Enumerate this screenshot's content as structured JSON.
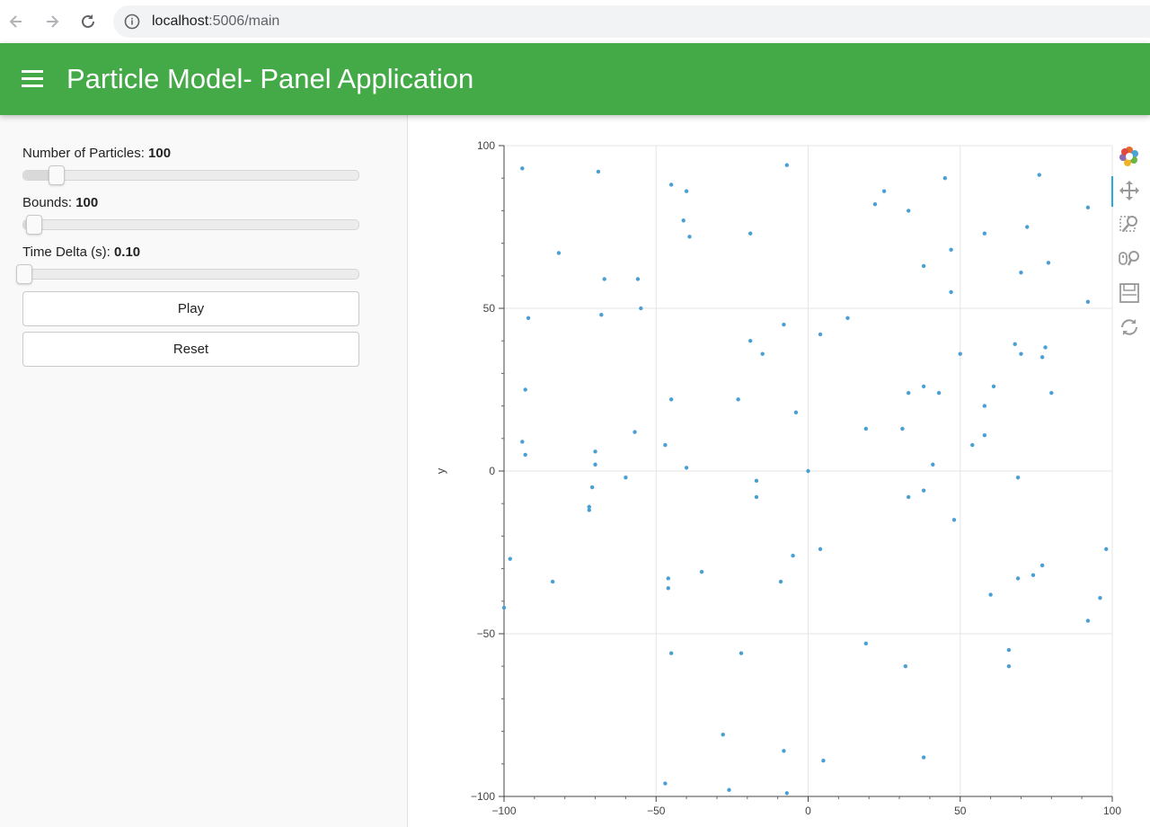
{
  "browser": {
    "url_host": "localhost",
    "url_path": ":5006/main"
  },
  "header": {
    "title": "Particle Model- Panel Application",
    "background": "#44aa48"
  },
  "sidebar": {
    "particles": {
      "label": "Number of Particles: ",
      "value": "100",
      "min": 0,
      "max": 1000,
      "current": 100
    },
    "bounds": {
      "label": "Bounds: ",
      "value": "100",
      "min": 100,
      "max": 1000,
      "current": 100
    },
    "time_delta": {
      "label": "Time Delta (s): ",
      "value": "0.10",
      "min": 0.1,
      "max": 10,
      "current": 0.1
    },
    "play_label": "Play",
    "reset_label": "Reset"
  },
  "toolbar": {
    "tools": [
      "bokeh-logo-icon",
      "pan-icon",
      "box-zoom-icon",
      "wheel-zoom-icon",
      "save-icon",
      "reset-icon"
    ]
  },
  "chart_data": {
    "type": "scatter",
    "xlabel": "",
    "ylabel": "y",
    "xlim": [
      -100,
      100
    ],
    "ylim": [
      -100,
      100
    ],
    "xticks": [
      "−100",
      "−50",
      "0",
      "50",
      "100"
    ],
    "yticks": [
      "−100",
      "−50",
      "0",
      "50",
      "100"
    ],
    "grid": true,
    "color": "#4a9fd5",
    "points": [
      [
        -94,
        93
      ],
      [
        -69,
        92
      ],
      [
        -45,
        88
      ],
      [
        -40,
        86
      ],
      [
        -7,
        94
      ],
      [
        22,
        82
      ],
      [
        25,
        86
      ],
      [
        33,
        80
      ],
      [
        45,
        90
      ],
      [
        76,
        91
      ],
      [
        -82,
        67
      ],
      [
        -41,
        77
      ],
      [
        -39,
        72
      ],
      [
        -19,
        73
      ],
      [
        72,
        75
      ],
      [
        47,
        68
      ],
      [
        58,
        73
      ],
      [
        79,
        64
      ],
      [
        92,
        81
      ],
      [
        38,
        63
      ],
      [
        70,
        61
      ],
      [
        47,
        55
      ],
      [
        -67,
        59
      ],
      [
        -56,
        59
      ],
      [
        -92,
        47
      ],
      [
        -68,
        48
      ],
      [
        -55,
        50
      ],
      [
        -8,
        45
      ],
      [
        13,
        47
      ],
      [
        92,
        52
      ],
      [
        4,
        42
      ],
      [
        -19,
        40
      ],
      [
        -15,
        36
      ],
      [
        68,
        39
      ],
      [
        70,
        36
      ],
      [
        77,
        35
      ],
      [
        78,
        38
      ],
      [
        50,
        36
      ],
      [
        -93,
        25
      ],
      [
        -45,
        22
      ],
      [
        -23,
        22
      ],
      [
        33,
        24
      ],
      [
        38,
        26
      ],
      [
        43,
        24
      ],
      [
        61,
        26
      ],
      [
        80,
        24
      ],
      [
        -4,
        18
      ],
      [
        19,
        13
      ],
      [
        31,
        13
      ],
      [
        58,
        20
      ],
      [
        -57,
        12
      ],
      [
        58,
        11
      ],
      [
        -94,
        9
      ],
      [
        -47,
        8
      ],
      [
        54,
        8
      ],
      [
        -93,
        5
      ],
      [
        -70,
        6
      ],
      [
        -70,
        2
      ],
      [
        -40,
        1
      ],
      [
        41,
        2
      ],
      [
        0,
        0
      ],
      [
        69,
        -2
      ],
      [
        -60,
        -2
      ],
      [
        -71,
        -5
      ],
      [
        -17,
        -3
      ],
      [
        -17,
        -8
      ],
      [
        33,
        -8
      ],
      [
        38,
        -6
      ],
      [
        -72,
        -12
      ],
      [
        -72,
        -11
      ],
      [
        48,
        -15
      ],
      [
        -98,
        -27
      ],
      [
        4,
        -24
      ],
      [
        -5,
        -26
      ],
      [
        98,
        -24
      ],
      [
        -84,
        -34
      ],
      [
        -46,
        -33
      ],
      [
        -35,
        -31
      ],
      [
        -9,
        -34
      ],
      [
        69,
        -33
      ],
      [
        74,
        -32
      ],
      [
        77,
        -29
      ],
      [
        -46,
        -36
      ],
      [
        60,
        -38
      ],
      [
        96,
        -39
      ],
      [
        -100,
        -42
      ],
      [
        92,
        -46
      ],
      [
        19,
        -53
      ],
      [
        -45,
        -56
      ],
      [
        -22,
        -56
      ],
      [
        66,
        -55
      ],
      [
        32,
        -60
      ],
      [
        66,
        -60
      ],
      [
        -28,
        -81
      ],
      [
        -8,
        -86
      ],
      [
        38,
        -88
      ],
      [
        5,
        -89
      ],
      [
        -47,
        -96
      ],
      [
        -26,
        -98
      ],
      [
        -7,
        -99
      ]
    ]
  }
}
